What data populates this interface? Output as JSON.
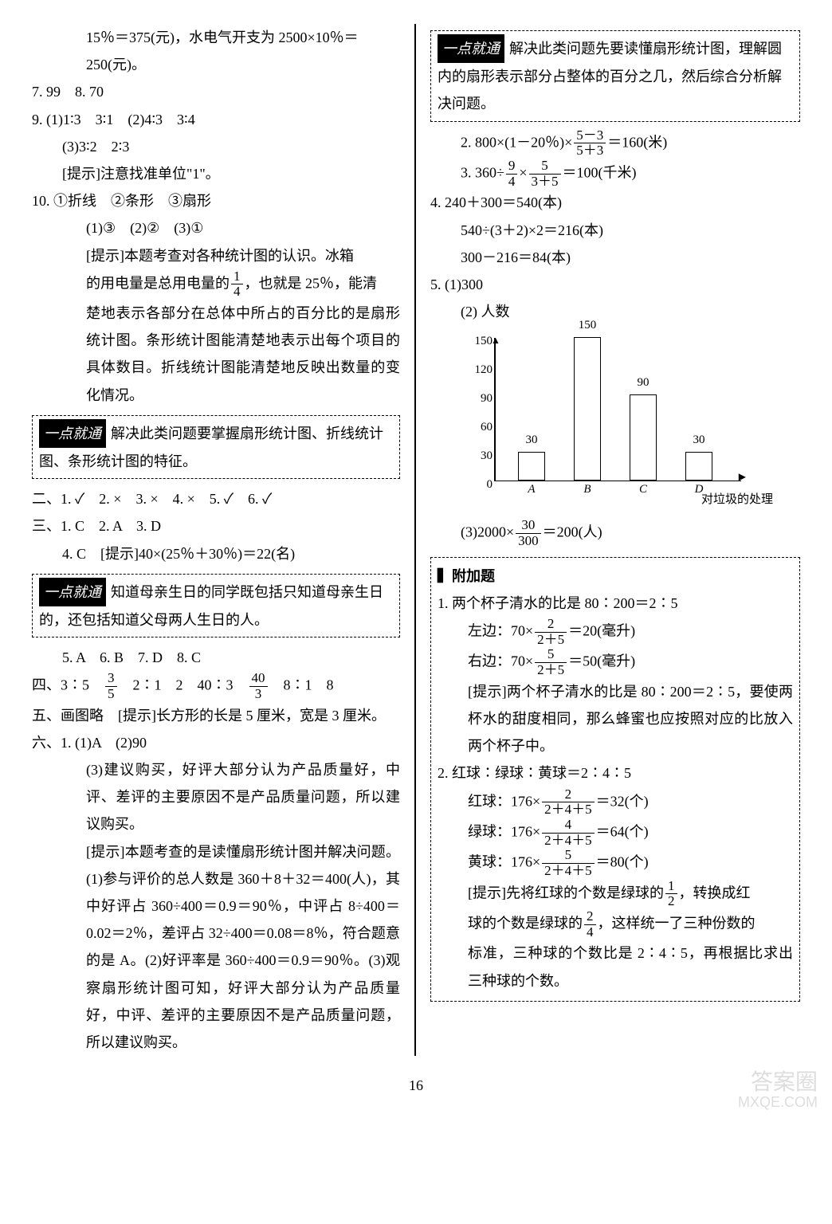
{
  "left": {
    "l1": "15％＝375(元)，水电气开支为 2500×10％＝",
    "l2": "250(元)。",
    "l3": "7. 99　8. 70",
    "l4": "9. (1)1∶3　3∶1　(2)4∶3　3∶4",
    "l5": "(3)3∶2　2∶3",
    "l6": "[提示]注意找准单位\"1\"。",
    "l7": "10. ①折线　②条形　③扇形",
    "l8": "(1)③　(2)②　(3)①",
    "l9": "[提示]本题考查对各种统计图的认识。冰箱",
    "l10a": "的用电量是总用电量的",
    "l10b": "，也就是 25％，能清",
    "l11": "楚地表示各部分在总体中所占的百分比的是扇形统计图。条形统计图能清楚地表示出每个项目的具体数目。折线统计图能清楚地反映出数量的变化情况。",
    "tip1": "解决此类问题要掌握扇形统计图、折线统计图、条形统计图的特征。",
    "l12": "二、1. ✓　2. ×　3. ×　4. ×　5. ✓　6. ✓",
    "l13": "三、1. C　2. A　3. D",
    "l14": "4. C　[提示]40×(25％＋30％)＝22(名)",
    "tip2": "知道母亲生日的同学既包括只知道母亲生日的，还包括知道父母两人生日的人。",
    "l15": "5. A　6. B　7. D　8. C",
    "l16a": "四、3∶5　",
    "l16b": "　2∶1　2　40∶3　",
    "l16c": "　8∶1　8",
    "l17": "五、画图略　[提示]长方形的长是 5 厘米，宽是 3 厘米。",
    "l18": "六、1. (1)A　(2)90",
    "l19": "(3)建议购买，好评大部分认为产品质量好，中评、差评的主要原因不是产品质量问题，所以建议购买。",
    "l20": "[提示]本题考查的是读懂扇形统计图并解决问题。(1)参与评价的总人数是 360＋8＋32＝400(人)，其中好评占 360÷400＝0.9＝90％，中评占 8÷400＝0.02＝2％，差评占 32÷400＝0.08＝8％，符合题意的是 A。(2)好评率是 360÷400＝0.9＝90％。(3)观察扇形统计图可知，好评大部分认为产品质量好，中评、差评的主要原因不是产品质量问题，所以建议购买。"
  },
  "right": {
    "tip3": "解决此类问题先要读懂扇形统计图，理解圆内的扇形表示部分占整体的百分之几，然后综合分析解决问题。",
    "r1a": "2. 800×(1－20％)×",
    "r1b": "＝160(米)",
    "r2a": "3. 360÷",
    "r2b": "×",
    "r2c": "＝100(千米)",
    "r3": "4. 240＋300＝540(本)",
    "r4": "540÷(3＋2)×2＝216(本)",
    "r5": "300－216＝84(本)",
    "r6": "5. (1)300",
    "r7": "(2) 人数",
    "r8a": "(3)2000×",
    "r8b": "＝200(人)",
    "appendix_title": "▍附加题",
    "a1": "1. 两个杯子清水的比是 80∶200＝2∶5",
    "a2a": "左边：70×",
    "a2b": "＝20(毫升)",
    "a3a": "右边：70×",
    "a3b": "＝50(毫升)",
    "a4": "[提示]两个杯子清水的比是 80∶200＝2∶5，要使两杯水的甜度相同，那么蜂蜜也应按照对应的比放入两个杯子中。",
    "a5": "2. 红球∶绿球∶黄球＝2∶4∶5",
    "a6a": "红球：176×",
    "a6b": "＝32(个)",
    "a7a": "绿球：176×",
    "a7b": "＝64(个)",
    "a8a": "黄球：176×",
    "a8b": "＝80(个)",
    "a9a": "[提示]先将红球的个数是绿球的",
    "a9b": "，转换成红",
    "a10a": "球的个数是绿球的",
    "a10b": "，这样统一了三种份数的",
    "a11": "标准，三种球的个数比是 2∶4∶5，再根据比求出三种球的个数。"
  },
  "fracs": {
    "f14": {
      "n": "1",
      "d": "4"
    },
    "f35": {
      "n": "3",
      "d": "5"
    },
    "f403": {
      "n": "40",
      "d": "3"
    },
    "f53_53": {
      "n": "5－3",
      "d": "5＋3"
    },
    "f94": {
      "n": "9",
      "d": "4"
    },
    "f5_35": {
      "n": "5",
      "d": "3＋5"
    },
    "f30_300": {
      "n": "30",
      "d": "300"
    },
    "f2_25": {
      "n": "2",
      "d": "2＋5"
    },
    "f5_25": {
      "n": "5",
      "d": "2＋5"
    },
    "f2_245": {
      "n": "2",
      "d": "2＋4＋5"
    },
    "f4_245": {
      "n": "4",
      "d": "2＋4＋5"
    },
    "f5_245": {
      "n": "5",
      "d": "2＋4＋5"
    },
    "f12": {
      "n": "1",
      "d": "2"
    },
    "f24": {
      "n": "2",
      "d": "4"
    }
  },
  "chart": {
    "ylabel": "人数",
    "ymax": 150,
    "yticks": [
      0,
      30,
      60,
      90,
      120,
      150
    ],
    "bars": [
      {
        "label": "A",
        "value": 30
      },
      {
        "label": "B",
        "value": 150
      },
      {
        "label": "C",
        "value": 90
      },
      {
        "label": "D",
        "value": 30
      }
    ],
    "xlabel": "对垃圾的处理",
    "bar_color": "#ffffff",
    "border_color": "#000000"
  },
  "tiplabel": "一点就通",
  "page": "16",
  "watermark1": "答案圈",
  "watermark2": "MXQE.COM"
}
